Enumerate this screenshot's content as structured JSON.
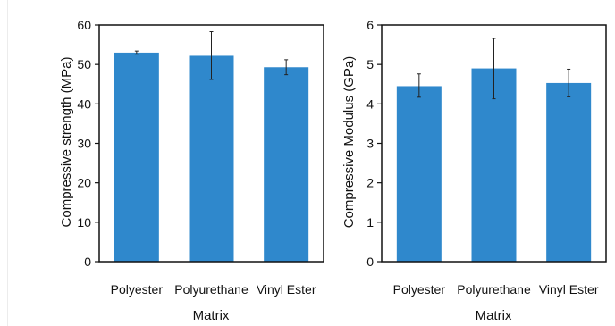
{
  "colors": {
    "bar": "#2f88cc",
    "frame": "#111111",
    "background": "#ffffff"
  },
  "chart_data": [
    {
      "type": "bar",
      "title": "",
      "xlabel": "Matrix",
      "ylabel": "Compressive strength (MPa)",
      "categories": [
        "Polyester",
        "Polyurethane",
        "Vinyl Ester"
      ],
      "values": [
        53,
        52.2,
        49.3
      ],
      "error_low": [
        52.6,
        46.2,
        47.4
      ],
      "error_high": [
        53.4,
        58.3,
        51.2
      ],
      "ylim": [
        0,
        60
      ],
      "yticks": [
        "0",
        "10",
        "20",
        "30",
        "40",
        "50",
        "60"
      ],
      "grid": false,
      "legend": "none"
    },
    {
      "type": "bar",
      "title": "",
      "xlabel": "Matrix",
      "ylabel": "Compressive Modulus (GPa)",
      "categories": [
        "Polyester",
        "Polyurethane",
        "Vinyl Ester"
      ],
      "values": [
        4.45,
        4.9,
        4.53
      ],
      "error_low": [
        4.17,
        4.13,
        4.18
      ],
      "error_high": [
        4.76,
        5.66,
        4.88
      ],
      "ylim": [
        0,
        6
      ],
      "yticks": [
        "0",
        "1",
        "2",
        "3",
        "4",
        "5",
        "6"
      ],
      "grid": false,
      "legend": "none"
    }
  ]
}
